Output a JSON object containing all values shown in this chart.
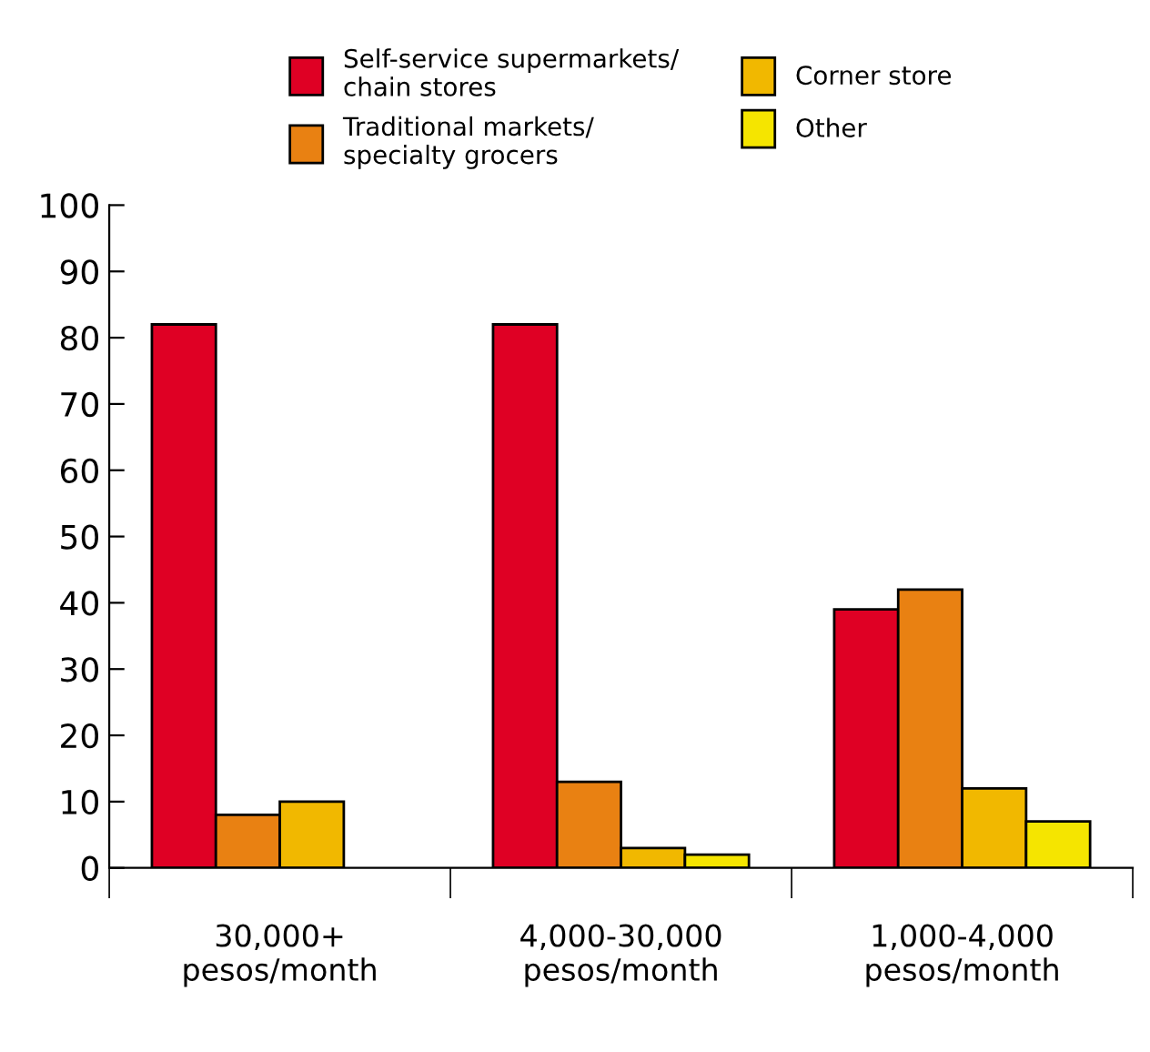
{
  "chart_data": {
    "type": "bar",
    "categories": [
      "30,000+\npesos/month",
      "4,000-30,000\npesos/month",
      "1,000-4,000\npesos/month"
    ],
    "series": [
      {
        "name": "Self-service supermarkets/\nchain stores",
        "color": "#df0024",
        "values": [
          82,
          82,
          39
        ]
      },
      {
        "name": "Traditional markets/\nspecialty grocers",
        "color": "#e98112",
        "values": [
          8,
          13,
          42
        ]
      },
      {
        "name": "Corner store",
        "color": "#f1b800",
        "values": [
          10,
          3,
          12
        ]
      },
      {
        "name": "Other",
        "color": "#f5e500",
        "values": [
          null,
          2,
          7
        ]
      }
    ],
    "ylim": [
      0,
      100
    ],
    "yticks": [
      0,
      10,
      20,
      30,
      40,
      50,
      60,
      70,
      80,
      90,
      100
    ],
    "grid": false,
    "legend": "top"
  }
}
